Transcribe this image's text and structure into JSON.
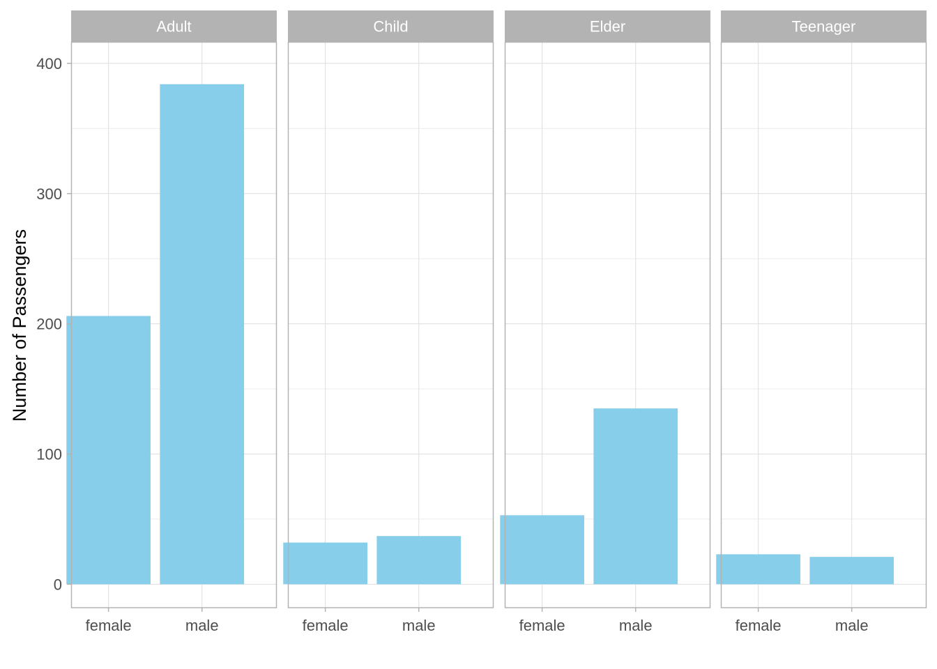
{
  "chart_data": {
    "type": "bar",
    "facet_by": "age group",
    "ylabel": "Number of Passengers",
    "xlabel": "",
    "ylim": [
      -18,
      416
    ],
    "y_ticks": [
      0,
      100,
      200,
      300,
      400
    ],
    "categories": [
      "female",
      "male"
    ],
    "bar_color": "#87CEEB",
    "strip_color": "#B3B3B3",
    "grid": true,
    "facets": [
      {
        "name": "Adult",
        "values": [
          206,
          384
        ]
      },
      {
        "name": "Child",
        "values": [
          32,
          37
        ]
      },
      {
        "name": "Elder",
        "values": [
          53,
          135
        ]
      },
      {
        "name": "Teenager",
        "values": [
          23,
          21
        ]
      }
    ]
  }
}
